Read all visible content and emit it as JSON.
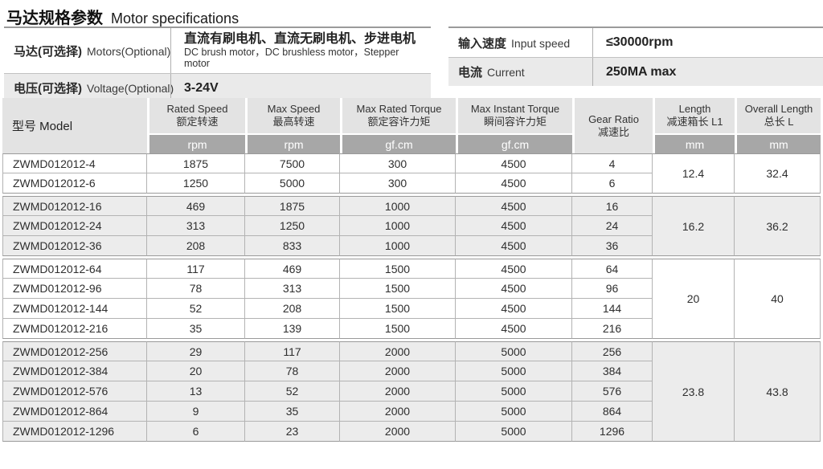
{
  "title": {
    "zh": "马达规格参数",
    "en": "Motor specifications"
  },
  "info_left": {
    "rows": [
      {
        "label_zh": "马达(可选择)",
        "label_en": "Motors(Optional)",
        "value_zh": "直流有刷电机、直流无刷电机、步进电机",
        "value_en": "DC brush motor，DC brushless motor，Stepper motor"
      },
      {
        "label_zh": "电压(可选择)",
        "label_en": "Voltage(Optional)",
        "value": "3-24V"
      }
    ]
  },
  "info_right": {
    "rows": [
      {
        "label_zh": "输入速度",
        "label_en": "Input speed",
        "value": "≤30000rpm"
      },
      {
        "label_zh": "电流",
        "label_en": "Current",
        "value": "250MA max"
      }
    ]
  },
  "spec_table": {
    "model_header": "型号 Model",
    "columns": [
      {
        "en": "Rated Speed",
        "zh": "额定转速",
        "unit": "rpm"
      },
      {
        "en": "Max Speed",
        "zh": "最高转速",
        "unit": "rpm"
      },
      {
        "en": "Max Rated Torque",
        "zh": "额定容许力矩",
        "unit": "gf.cm"
      },
      {
        "en": "Max Instant Torque",
        "zh": "瞬间容许力矩",
        "unit": "gf.cm"
      },
      {
        "en": "Gear Ratio",
        "zh": "减速比",
        "unit": ""
      },
      {
        "en": "Length",
        "zh": "减速箱长 L1",
        "unit": "mm"
      },
      {
        "en": "Overall Length",
        "zh": "总长 L",
        "unit": "mm"
      }
    ],
    "groups": [
      {
        "shaded": false,
        "length_l1": "12.4",
        "overall_l": "32.4",
        "rows": [
          {
            "model": "ZWMD012012-4",
            "rated_speed": "1875",
            "max_speed": "7500",
            "max_rated_torque": "300",
            "max_instant_torque": "4500",
            "gear_ratio": "4"
          },
          {
            "model": "ZWMD012012-6",
            "rated_speed": "1250",
            "max_speed": "5000",
            "max_rated_torque": "300",
            "max_instant_torque": "4500",
            "gear_ratio": "6"
          }
        ]
      },
      {
        "shaded": true,
        "length_l1": "16.2",
        "overall_l": "36.2",
        "rows": [
          {
            "model": "ZWMD012012-16",
            "rated_speed": "469",
            "max_speed": "1875",
            "max_rated_torque": "1000",
            "max_instant_torque": "4500",
            "gear_ratio": "16"
          },
          {
            "model": "ZWMD012012-24",
            "rated_speed": "313",
            "max_speed": "1250",
            "max_rated_torque": "1000",
            "max_instant_torque": "4500",
            "gear_ratio": "24"
          },
          {
            "model": "ZWMD012012-36",
            "rated_speed": "208",
            "max_speed": "833",
            "max_rated_torque": "1000",
            "max_instant_torque": "4500",
            "gear_ratio": "36"
          }
        ]
      },
      {
        "shaded": false,
        "length_l1": "20",
        "overall_l": "40",
        "rows": [
          {
            "model": "ZWMD012012-64",
            "rated_speed": "117",
            "max_speed": "469",
            "max_rated_torque": "1500",
            "max_instant_torque": "4500",
            "gear_ratio": "64"
          },
          {
            "model": "ZWMD012012-96",
            "rated_speed": "78",
            "max_speed": "313",
            "max_rated_torque": "1500",
            "max_instant_torque": "4500",
            "gear_ratio": "96"
          },
          {
            "model": "ZWMD012012-144",
            "rated_speed": "52",
            "max_speed": "208",
            "max_rated_torque": "1500",
            "max_instant_torque": "4500",
            "gear_ratio": "144"
          },
          {
            "model": "ZWMD012012-216",
            "rated_speed": "35",
            "max_speed": "139",
            "max_rated_torque": "1500",
            "max_instant_torque": "4500",
            "gear_ratio": "216"
          }
        ]
      },
      {
        "shaded": true,
        "length_l1": "23.8",
        "overall_l": "43.8",
        "rows": [
          {
            "model": "ZWMD012012-256",
            "rated_speed": "29",
            "max_speed": "117",
            "max_rated_torque": "2000",
            "max_instant_torque": "5000",
            "gear_ratio": "256"
          },
          {
            "model": "ZWMD012012-384",
            "rated_speed": "20",
            "max_speed": "78",
            "max_rated_torque": "2000",
            "max_instant_torque": "5000",
            "gear_ratio": "384"
          },
          {
            "model": "ZWMD012012-576",
            "rated_speed": "13",
            "max_speed": "52",
            "max_rated_torque": "2000",
            "max_instant_torque": "5000",
            "gear_ratio": "576"
          },
          {
            "model": "ZWMD012012-864",
            "rated_speed": "9",
            "max_speed": "35",
            "max_rated_torque": "2000",
            "max_instant_torque": "5000",
            "gear_ratio": "864"
          },
          {
            "model": "ZWMD012012-1296",
            "rated_speed": "6",
            "max_speed": "23",
            "max_rated_torque": "2000",
            "max_instant_torque": "5000",
            "gear_ratio": "1296"
          }
        ]
      }
    ]
  },
  "colors": {
    "header_bg": "#e3e3e3",
    "unit_bg": "#a7a7a7",
    "row_shade": "#ececec",
    "info_shade": "#eaeaea",
    "grid_line": "#b3b3b3",
    "group_line": "#9a9a9a",
    "text_dark": "#2f2f2f"
  }
}
